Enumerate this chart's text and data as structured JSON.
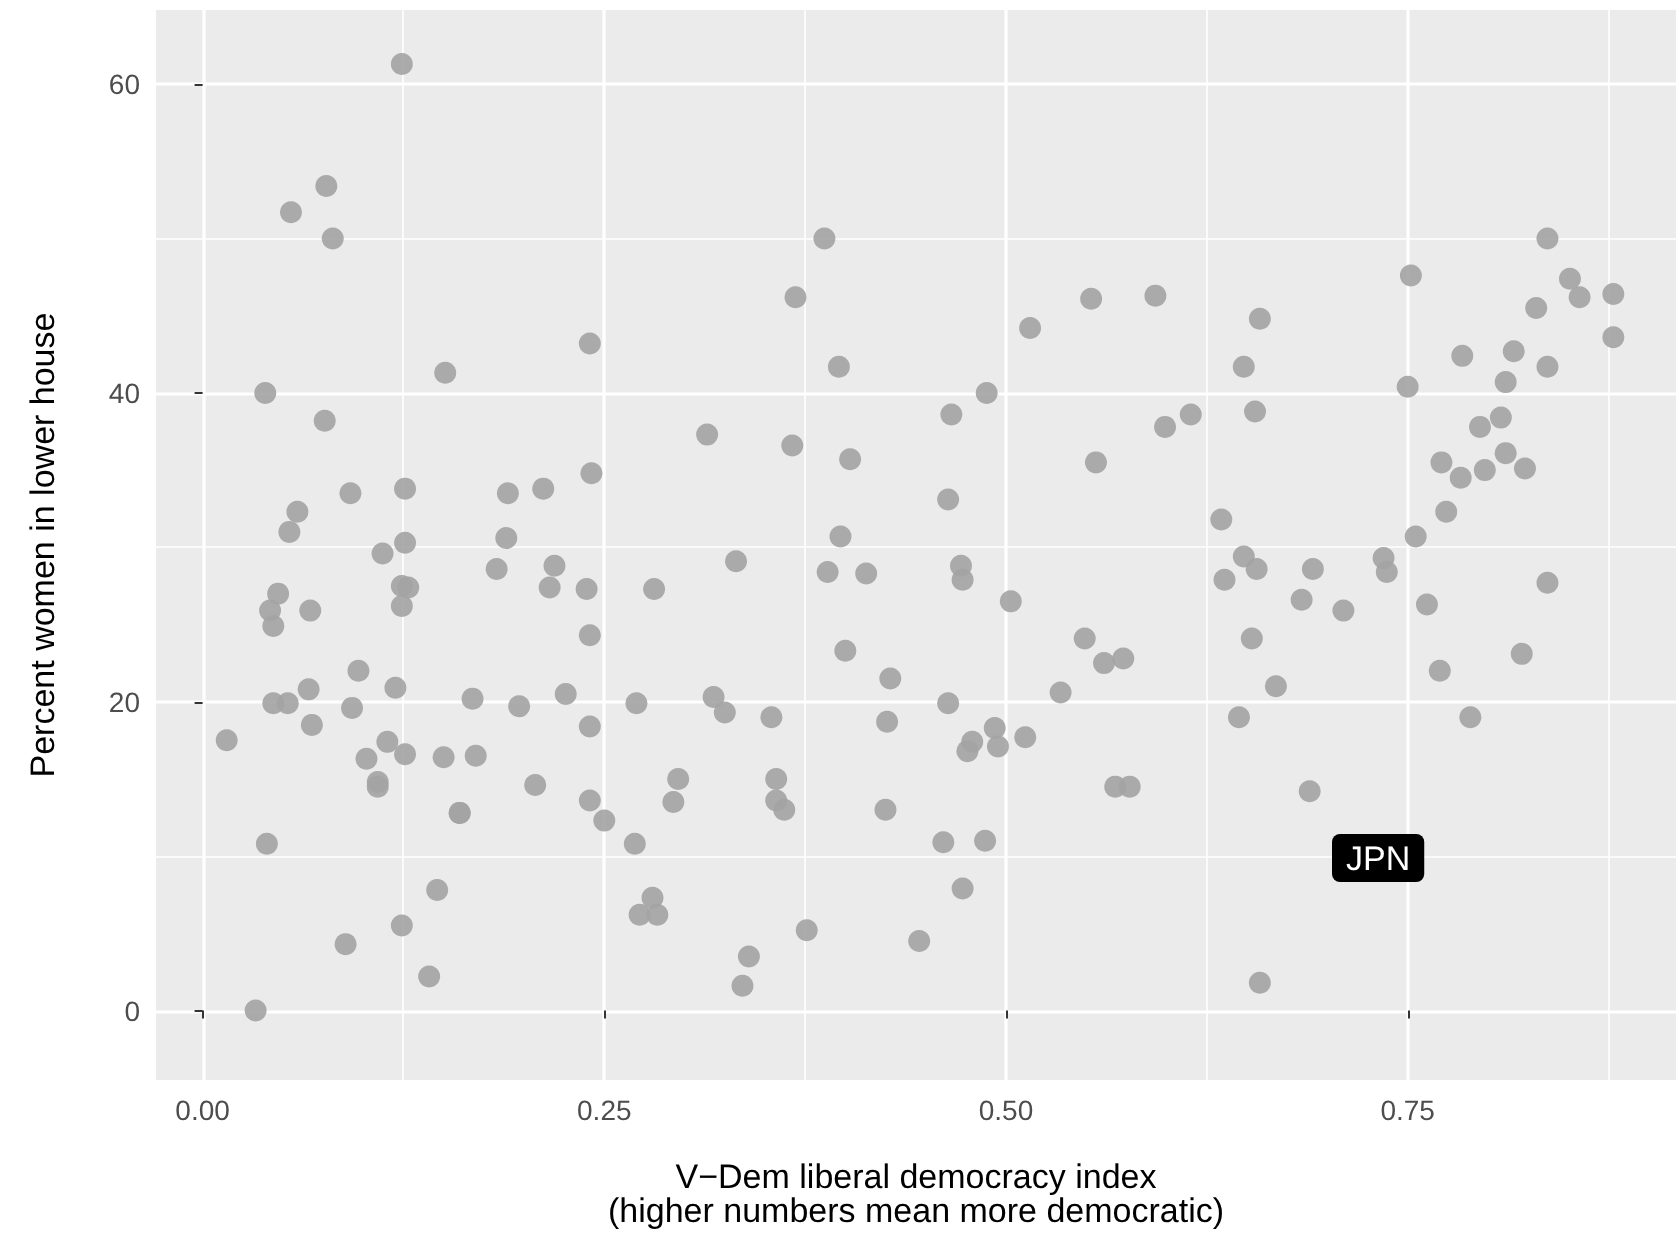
{
  "chart_data": {
    "type": "scatter",
    "xlabel": "V−Dem liberal democracy index\n(higher numbers mean more democratic)",
    "ylabel": "Percent women in lower house",
    "annotations": [
      "JPN"
    ],
    "xlim": [
      -0.029,
      0.917
    ],
    "ylim": [
      -4.5,
      64.8
    ],
    "xticks": [
      {
        "value": 0,
        "label": "0.00"
      },
      {
        "value": 0.25,
        "label": "0.25"
      },
      {
        "value": 0.5,
        "label": "0.50"
      },
      {
        "value": 0.75,
        "label": "0.75"
      }
    ],
    "yticks": [
      0,
      20,
      40,
      60
    ],
    "grid": true,
    "marker": "circle",
    "series": [
      {
        "color": "#a3a3a3",
        "x": [
          0.124,
          0.077,
          0.055,
          0.081,
          0.241,
          0.151,
          0.039,
          0.076,
          0.242,
          0.092,
          0.126,
          0.19,
          0.212,
          0.059,
          0.054,
          0.189,
          0.126,
          0.112,
          0.183,
          0.219,
          0.047,
          0.042,
          0.067,
          0.044,
          0.124,
          0.128,
          0.124,
          0.216,
          0.239,
          0.281,
          0.241,
          0.097,
          0.066,
          0.12,
          0.168,
          0.226,
          0.044,
          0.053,
          0.093,
          0.197,
          0.27,
          0.068,
          0.241,
          0.015,
          0.115,
          0.102,
          0.126,
          0.15,
          0.17,
          0.109,
          0.109,
          0.207,
          0.296,
          0.293,
          0.16,
          0.16,
          0.241,
          0.25,
          0.04,
          0.269,
          0.146,
          0.28,
          0.272,
          0.283,
          0.124,
          0.089,
          0.141,
          0.033,
          0.387,
          0.369,
          0.396,
          0.515,
          0.553,
          0.593,
          0.314,
          0.367,
          0.403,
          0.466,
          0.488,
          0.464,
          0.556,
          0.599,
          0.397,
          0.837,
          0.752,
          0.851,
          0.857,
          0.878,
          0.658,
          0.83,
          0.878,
          0.648,
          0.784,
          0.816,
          0.837,
          0.75,
          0.811,
          0.615,
          0.655,
          0.795,
          0.808,
          0.771,
          0.783,
          0.798,
          0.811,
          0.823,
          0.634,
          0.774,
          0.755,
          0.332,
          0.389,
          0.413,
          0.472,
          0.473,
          0.503,
          0.549,
          0.561,
          0.573,
          0.534,
          0.4,
          0.428,
          0.318,
          0.325,
          0.354,
          0.426,
          0.464,
          0.493,
          0.495,
          0.479,
          0.476,
          0.512,
          0.357,
          0.357,
          0.362,
          0.425,
          0.568,
          0.577,
          0.461,
          0.487,
          0.473,
          0.376,
          0.446,
          0.34,
          0.336,
          0.648,
          0.636,
          0.656,
          0.691,
          0.735,
          0.737,
          0.837,
          0.684,
          0.71,
          0.762,
          0.653,
          0.821,
          0.77,
          0.668,
          0.645,
          0.789,
          0.689,
          0.658
        ],
        "values": [
          61.3,
          53.4,
          51.7,
          50.0,
          43.2,
          41.3,
          40.0,
          38.2,
          34.8,
          33.5,
          33.8,
          33.5,
          33.8,
          32.3,
          31.0,
          30.6,
          30.3,
          29.6,
          28.6,
          28.8,
          27.0,
          25.9,
          25.9,
          24.9,
          27.5,
          27.4,
          26.2,
          27.4,
          27.3,
          27.3,
          24.3,
          22.0,
          20.8,
          20.9,
          20.2,
          20.5,
          19.9,
          19.9,
          19.6,
          19.7,
          19.9,
          18.5,
          18.4,
          17.5,
          17.4,
          16.3,
          16.6,
          16.4,
          16.5,
          14.8,
          14.5,
          14.6,
          15.0,
          13.5,
          12.8,
          12.8,
          13.6,
          12.3,
          10.8,
          10.8,
          7.8,
          7.3,
          6.2,
          6.2,
          5.5,
          4.3,
          2.2,
          0.0,
          50.0,
          46.2,
          41.7,
          44.2,
          46.1,
          46.3,
          37.3,
          36.6,
          35.7,
          38.6,
          40.0,
          33.1,
          35.5,
          37.8,
          30.7,
          50.0,
          47.6,
          47.4,
          46.2,
          46.4,
          44.8,
          45.5,
          43.6,
          41.7,
          42.4,
          42.7,
          41.7,
          40.4,
          40.7,
          38.6,
          38.8,
          37.8,
          38.4,
          35.5,
          34.5,
          35.0,
          36.1,
          35.1,
          31.8,
          32.3,
          30.7,
          29.1,
          28.4,
          28.3,
          28.8,
          27.9,
          26.5,
          24.1,
          22.5,
          22.8,
          20.6,
          23.3,
          21.5,
          20.3,
          19.3,
          19.0,
          18.7,
          19.9,
          18.3,
          17.1,
          17.4,
          16.8,
          17.7,
          15.0,
          13.6,
          13.0,
          13.0,
          14.5,
          14.5,
          10.9,
          11.0,
          7.9,
          5.2,
          4.5,
          3.5,
          1.6,
          29.4,
          27.9,
          28.6,
          28.6,
          29.3,
          28.4,
          27.7,
          26.6,
          25.9,
          26.3,
          24.1,
          23.1,
          22.0,
          21.0,
          19.0,
          19.0,
          14.2,
          1.8
        ]
      }
    ]
  }
}
